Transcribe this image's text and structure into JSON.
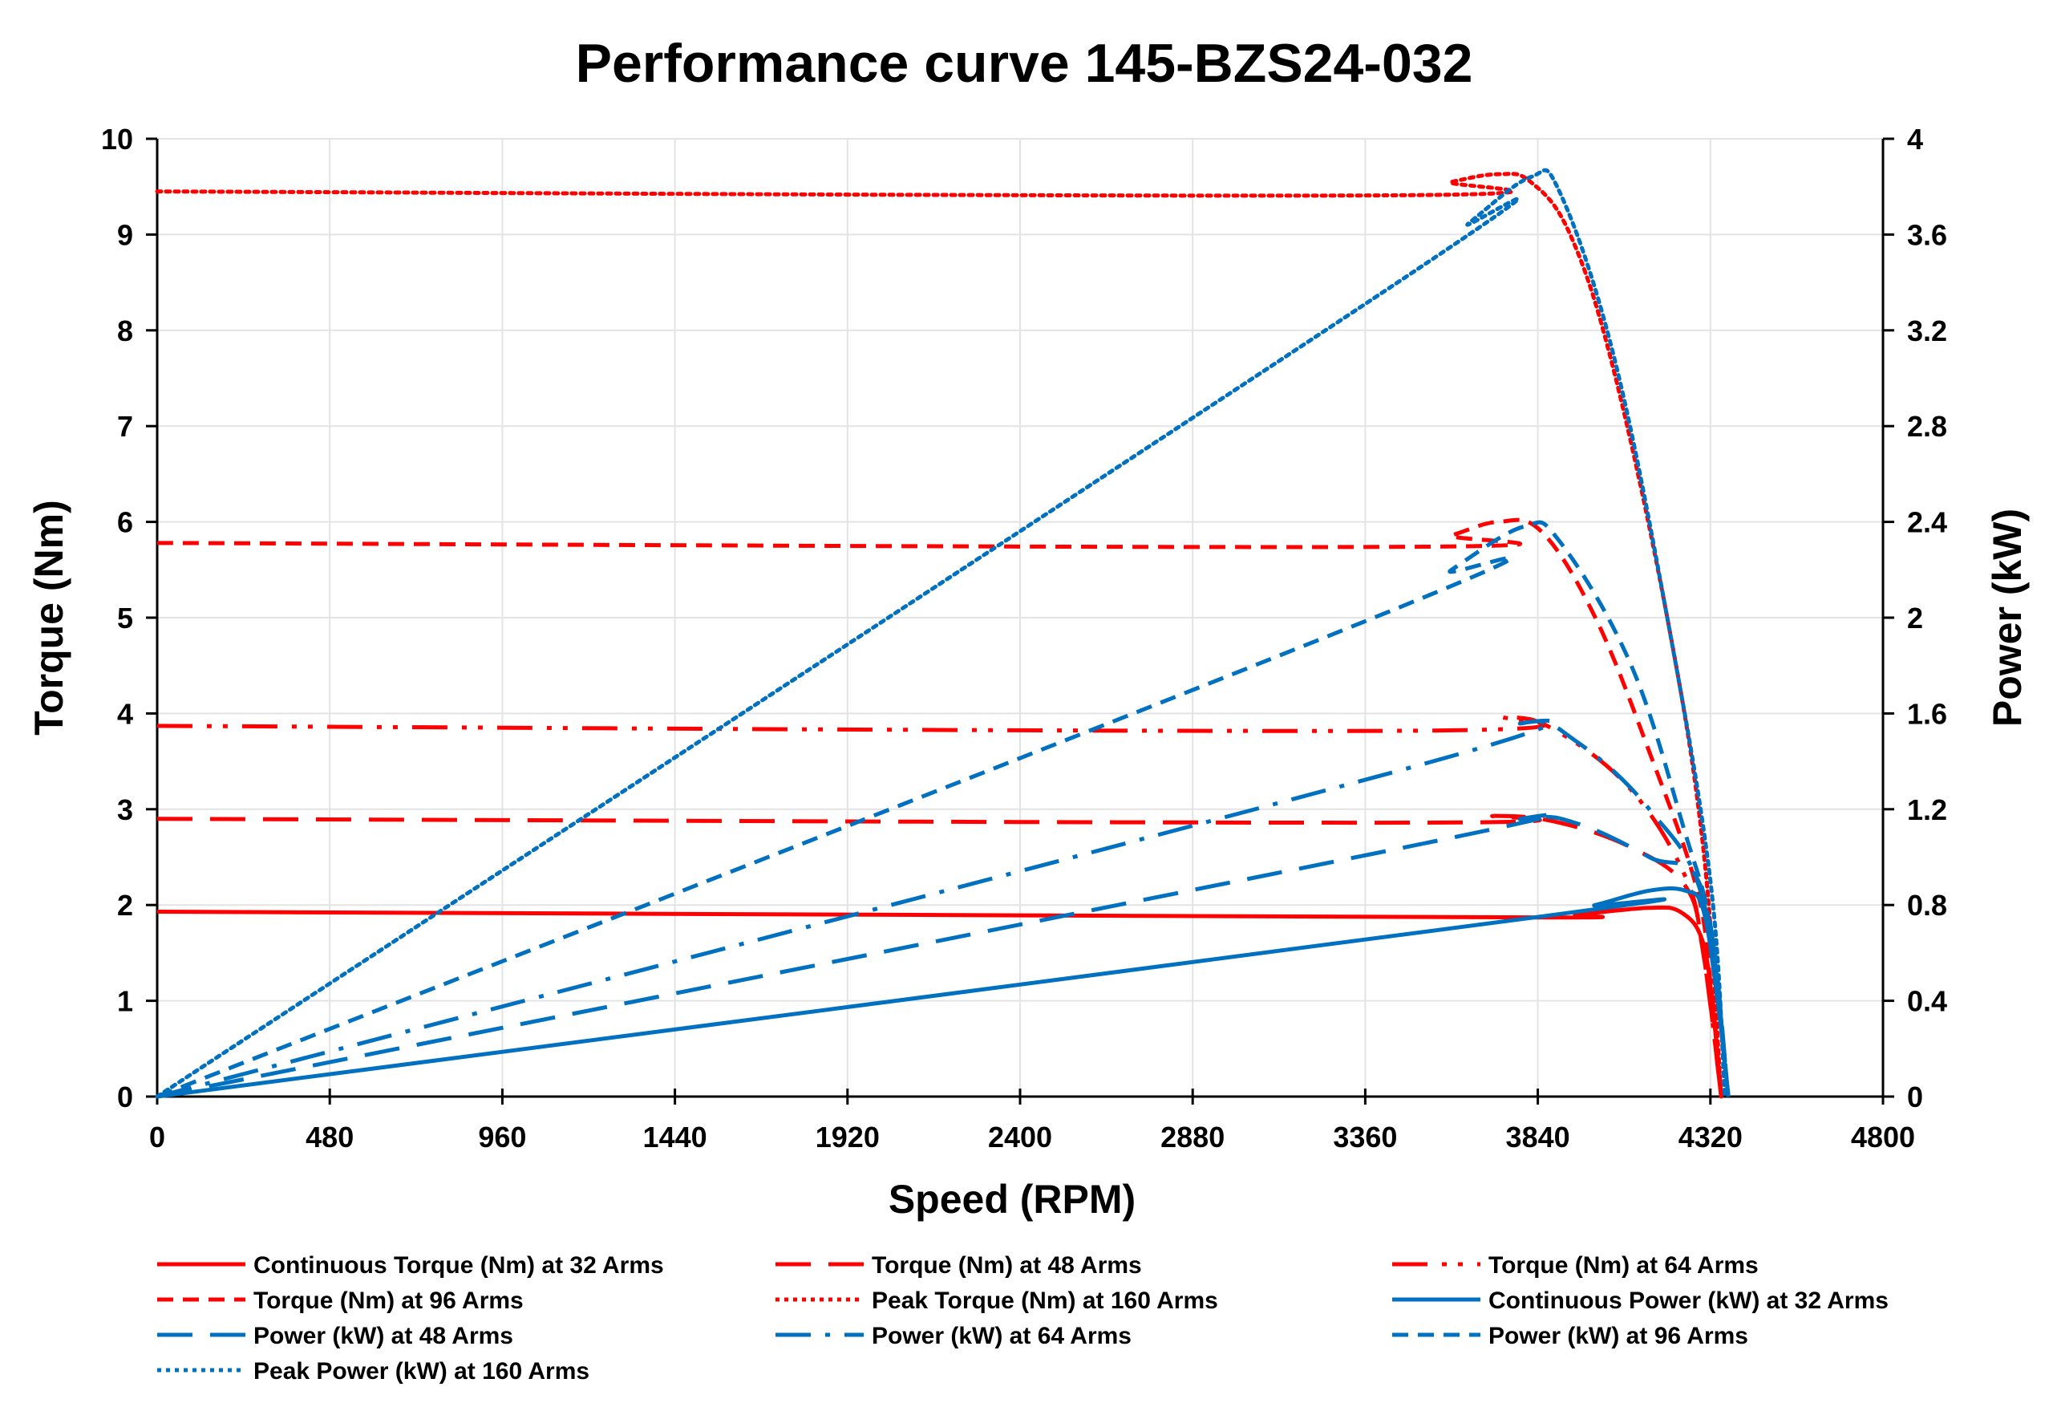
{
  "chart_data": {
    "type": "line",
    "title": "Performance curve 145-BZS24-032",
    "xlabel": "Speed (RPM)",
    "ylabel": "Torque (Nm)",
    "y2label": "Power (kW)",
    "xlim": [
      0,
      4800
    ],
    "ylim": [
      0,
      10
    ],
    "y2lim": [
      0,
      4
    ],
    "xticks": [
      "0",
      "480",
      "960",
      "1440",
      "1920",
      "2400",
      "2880",
      "3360",
      "3840",
      "4320",
      "4800"
    ],
    "yticks": [
      "0",
      "1",
      "2",
      "3",
      "4",
      "5",
      "6",
      "7",
      "8",
      "9",
      "10"
    ],
    "y2ticks": [
      "0",
      "0.4",
      "0.8",
      "1.2",
      "1.6",
      "2",
      "2.4",
      "2.8",
      "3.2",
      "3.6",
      "4"
    ],
    "grid": true,
    "legend_position": "bottom",
    "series": [
      {
        "name": "Continuous Torque (Nm) at 32 Arms",
        "axis": "left",
        "color": "#FF0000",
        "dash": "solid",
        "points": [
          [
            0,
            1.93
          ],
          [
            1920,
            1.9
          ],
          [
            3840,
            1.87
          ],
          [
            3950,
            1.9
          ],
          [
            4150,
            1.97
          ],
          [
            4240,
            1.92
          ],
          [
            4300,
            1.6
          ],
          [
            4330,
            0.8
          ],
          [
            4350,
            0
          ]
        ]
      },
      {
        "name": "Torque (Nm) at 48 Arms",
        "axis": "left",
        "color": "#FF0000",
        "dash": "longdash",
        "points": [
          [
            0,
            2.9
          ],
          [
            3500,
            2.86
          ],
          [
            3720,
            2.93
          ],
          [
            3900,
            2.86
          ],
          [
            4100,
            2.6
          ],
          [
            4250,
            2.2
          ],
          [
            4300,
            1.5
          ],
          [
            4350,
            0
          ]
        ]
      },
      {
        "name": "Torque (Nm) at 64 Arms",
        "axis": "left",
        "color": "#FF0000",
        "dash": "longdashdotdot",
        "points": [
          [
            0,
            3.87
          ],
          [
            3500,
            3.82
          ],
          [
            3750,
            3.96
          ],
          [
            3900,
            3.8
          ],
          [
            4100,
            3.2
          ],
          [
            4250,
            2.3
          ],
          [
            4300,
            1.5
          ],
          [
            4350,
            0
          ]
        ]
      },
      {
        "name": "Torque (Nm) at 96 Arms",
        "axis": "left",
        "color": "#FF0000",
        "dash": "dash",
        "points": [
          [
            0,
            5.78
          ],
          [
            3480,
            5.74
          ],
          [
            3600,
            5.86
          ],
          [
            3730,
            6.0
          ],
          [
            3850,
            5.9
          ],
          [
            4000,
            5.0
          ],
          [
            4150,
            3.6
          ],
          [
            4280,
            2.2
          ],
          [
            4320,
            1.2
          ],
          [
            4350,
            0
          ]
        ]
      },
      {
        "name": "Peak Torque (Nm) at 160 Arms",
        "axis": "left",
        "color": "#FF0000",
        "dash": "dot",
        "points": [
          [
            0,
            9.45
          ],
          [
            3450,
            9.41
          ],
          [
            3600,
            9.55
          ],
          [
            3730,
            9.63
          ],
          [
            3820,
            9.55
          ],
          [
            3930,
            9.0
          ],
          [
            4050,
            7.6
          ],
          [
            4200,
            5.0
          ],
          [
            4300,
            2.6
          ],
          [
            4350,
            0
          ]
        ]
      },
      {
        "name": "Continuous Power (kW) at 32 Arms",
        "axis": "right",
        "color": "#0070C0",
        "dash": "solid",
        "points": [
          [
            0,
            0
          ],
          [
            3840,
            0.75
          ],
          [
            4000,
            0.8
          ],
          [
            4150,
            0.86
          ],
          [
            4250,
            0.86
          ],
          [
            4300,
            0.78
          ],
          [
            4340,
            0.4
          ],
          [
            4370,
            0
          ]
        ]
      },
      {
        "name": "Power (kW) at 48 Arms",
        "axis": "right",
        "color": "#0070C0",
        "dash": "longdash",
        "points": [
          [
            0,
            0
          ],
          [
            3500,
            1.05
          ],
          [
            3800,
            1.16
          ],
          [
            3950,
            1.14
          ],
          [
            4150,
            1.0
          ],
          [
            4300,
            0.85
          ],
          [
            4370,
            0
          ]
        ]
      },
      {
        "name": "Power (kW) at 64 Arms",
        "axis": "right",
        "color": "#0070C0",
        "dash": "longdashdot",
        "points": [
          [
            0,
            0
          ],
          [
            3500,
            1.38
          ],
          [
            3800,
            1.56
          ],
          [
            3950,
            1.48
          ],
          [
            4150,
            1.2
          ],
          [
            4300,
            0.82
          ],
          [
            4370,
            0
          ]
        ]
      },
      {
        "name": "Power (kW) at 96 Arms",
        "axis": "right",
        "color": "#0070C0",
        "dash": "dash",
        "points": [
          [
            0,
            0
          ],
          [
            3450,
            2.04
          ],
          [
            3600,
            2.2
          ],
          [
            3800,
            2.38
          ],
          [
            3900,
            2.32
          ],
          [
            4100,
            1.8
          ],
          [
            4250,
            1.1
          ],
          [
            4320,
            0.7
          ],
          [
            4370,
            0
          ]
        ]
      },
      {
        "name": "Peak Power (kW) at 160 Arms",
        "axis": "right",
        "color": "#0070C0",
        "dash": "dot",
        "points": [
          [
            0,
            0
          ],
          [
            3450,
            3.4
          ],
          [
            3650,
            3.65
          ],
          [
            3820,
            3.84
          ],
          [
            3900,
            3.78
          ],
          [
            4050,
            3.1
          ],
          [
            4200,
            2.0
          ],
          [
            4320,
            0.9
          ],
          [
            4360,
            0
          ]
        ]
      }
    ]
  }
}
